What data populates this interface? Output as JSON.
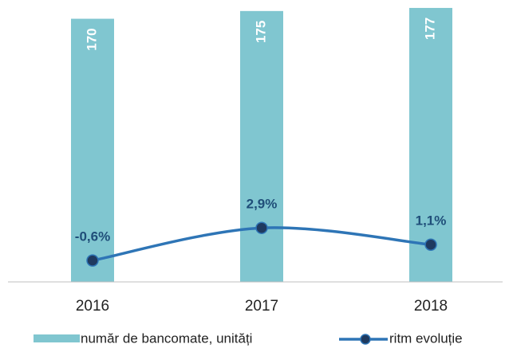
{
  "chart_data": {
    "type": "bar_line",
    "categories": [
      "2016",
      "2017",
      "2018"
    ],
    "series": [
      {
        "name": "număr de bancomate, unități",
        "color": "#80c6d0",
        "values": [
          170,
          175,
          177
        ]
      },
      {
        "name": "ritm evoluție",
        "color": "#2e75b6",
        "marker_color": "#1f3a5f",
        "axis": "y2",
        "values": [
          -0.6,
          2.9,
          1.1
        ],
        "value_labels": [
          "-0,6%",
          "2,9%",
          "1,1%"
        ]
      }
    ],
    "ylim": [
      0,
      178
    ],
    "y2lim": [
      -2.9,
      26.7
    ],
    "legend": "bottom"
  }
}
